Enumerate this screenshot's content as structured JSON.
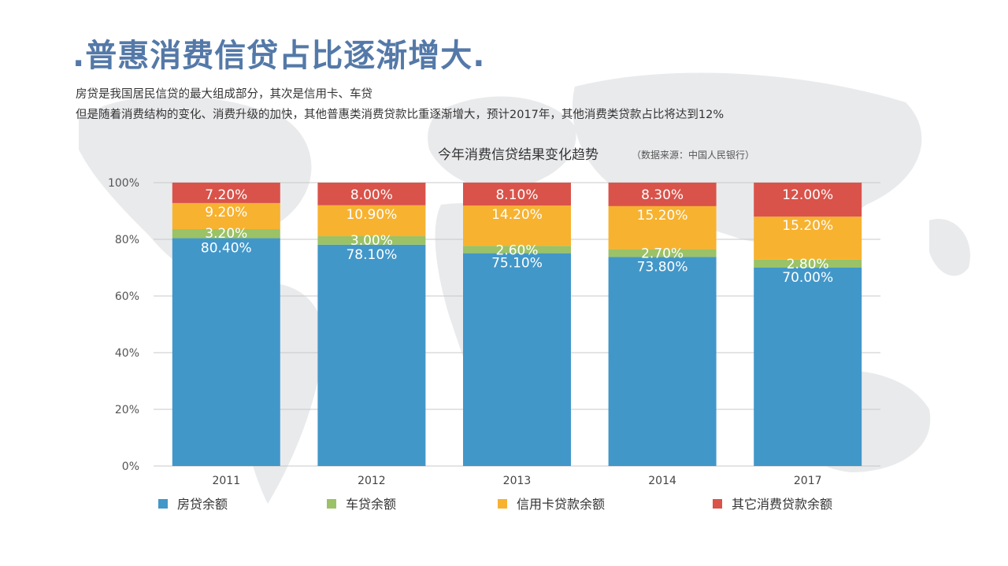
{
  "page": {
    "title": ".普惠消费信贷占比逐渐增大.",
    "subtitle_lines": [
      "房贷是我国居民信贷的最大组成部分，其次是信用卡、车贷",
      "但是随着消费结构的变化、消费升级的加快，其他普惠类消费贷款比重逐渐增大，预计2017年，其他消费类贷款占比将达到12%"
    ]
  },
  "chart_data": {
    "type": "bar",
    "stacked": true,
    "title": "今年消费信贷结果变化趋势",
    "source_note": "（数据来源：中国人民银行）",
    "categories": [
      "2011",
      "2012",
      "2013",
      "2014",
      "2017"
    ],
    "series": [
      {
        "name": "房贷余额",
        "color": "#4297c9",
        "values": [
          80.4,
          78.1,
          75.1,
          73.8,
          70.0
        ],
        "labels": [
          "80.40%",
          "78.10%",
          "75.10%",
          "73.80%",
          "70.00%"
        ]
      },
      {
        "name": "车贷余额",
        "color": "#9bc266",
        "values": [
          3.2,
          3.0,
          2.6,
          2.7,
          2.8
        ],
        "labels": [
          "3.20%",
          "3.00%",
          "2.60%",
          "2.70%",
          "2.80%"
        ]
      },
      {
        "name": "信用卡贷款余额",
        "color": "#f7b230",
        "values": [
          9.2,
          10.9,
          14.2,
          15.2,
          15.2
        ],
        "labels": [
          "9.20%",
          "10.90%",
          "14.20%",
          "15.20%",
          "15.20%"
        ]
      },
      {
        "name": "其它消费贷款余额",
        "color": "#d9534a",
        "values": [
          7.2,
          8.0,
          8.1,
          8.3,
          12.0
        ],
        "labels": [
          "7.20%",
          "8.00%",
          "8.10%",
          "8.30%",
          "12.00%"
        ]
      }
    ],
    "ylim": [
      0,
      100
    ],
    "yticks": [
      0,
      20,
      40,
      60,
      80,
      100
    ],
    "ytick_labels": [
      "0%",
      "20%",
      "40%",
      "60%",
      "80%",
      "100%"
    ],
    "grid": true,
    "legend": "bottom",
    "xlabel": "",
    "ylabel": ""
  }
}
